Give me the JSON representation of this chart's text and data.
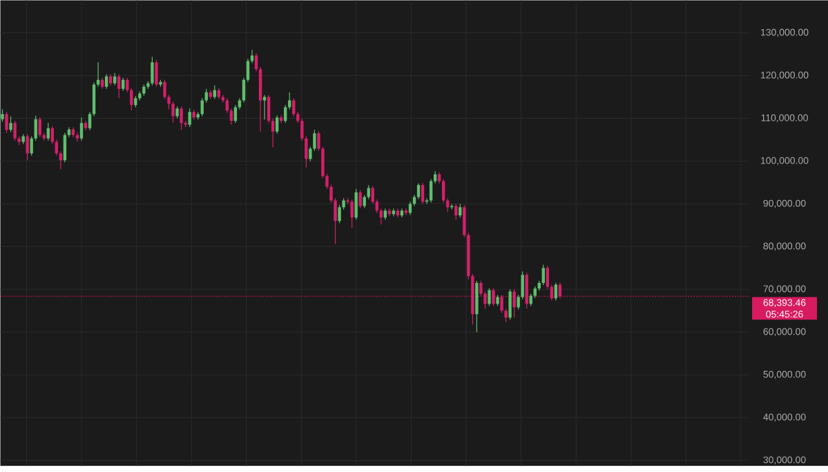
{
  "chart_data": {
    "type": "candlestick",
    "categories": [
      null,
      null,
      null,
      null,
      null,
      null,
      null,
      null,
      null,
      null,
      null,
      null,
      null,
      null,
      null,
      null,
      null,
      null,
      null,
      null,
      null,
      null,
      null,
      null,
      null,
      null,
      null,
      null,
      null,
      null,
      null,
      null,
      null,
      null,
      null,
      null,
      null,
      null,
      null,
      null,
      null,
      null,
      null,
      null,
      null,
      null,
      null,
      null,
      null,
      null,
      null,
      null,
      null,
      null,
      null,
      null,
      null,
      null,
      null,
      null,
      null,
      null,
      null,
      null,
      null,
      null,
      null,
      null,
      null,
      null,
      null,
      null,
      null,
      null,
      null,
      null,
      null,
      null,
      null,
      null,
      null,
      null,
      null,
      null,
      null,
      null,
      null,
      null,
      null,
      null,
      null,
      null,
      null,
      null,
      null,
      null,
      null,
      null,
      null,
      null,
      null,
      null,
      null,
      null,
      null,
      null,
      null,
      null,
      null,
      null,
      null,
      null,
      null,
      null,
      null,
      null,
      null,
      null,
      null,
      null,
      null,
      null,
      null,
      null,
      null,
      null,
      null,
      null,
      null,
      null,
      null,
      null,
      null,
      null,
      null,
      null,
      null,
      null,
      null,
      null,
      null,
      null,
      null,
      null,
      null,
      null,
      null,
      null,
      null,
      null,
      null,
      null,
      null,
      null,
      null,
      null,
      null,
      null,
      null,
      null,
      null,
      null,
      null,
      null,
      null,
      null,
      null,
      null,
      null,
      null,
      null,
      null,
      null,
      null,
      null,
      null,
      null,
      null,
      null,
      null
    ],
    "ohlc": [
      [
        109800,
        112100,
        109200,
        111000
      ],
      [
        111000,
        111500,
        106600,
        107300
      ],
      [
        107300,
        110500,
        106800,
        108900
      ],
      [
        108900,
        109400,
        104800,
        105300
      ],
      [
        105300,
        105800,
        103700,
        104500
      ],
      [
        104500,
        106300,
        104000,
        105800
      ],
      [
        105800,
        106300,
        100200,
        101800
      ],
      [
        101800,
        105800,
        101300,
        105300
      ],
      [
        105300,
        110600,
        104800,
        109800
      ],
      [
        109800,
        110300,
        105600,
        106100
      ],
      [
        106100,
        106600,
        104800,
        105300
      ],
      [
        105300,
        108900,
        104800,
        107700
      ],
      [
        107700,
        108200,
        104000,
        104500
      ],
      [
        104500,
        105000,
        101300,
        101800
      ],
      [
        101800,
        102300,
        98100,
        100200
      ],
      [
        100200,
        106600,
        99700,
        106100
      ],
      [
        106100,
        107900,
        105600,
        107400
      ],
      [
        107400,
        107900,
        105600,
        106100
      ],
      [
        106100,
        106600,
        104500,
        105300
      ],
      [
        105300,
        110200,
        104800,
        108900
      ],
      [
        108900,
        109400,
        107200,
        107700
      ],
      [
        107700,
        111500,
        107200,
        111000
      ],
      [
        111000,
        118400,
        110500,
        117900
      ],
      [
        117900,
        123100,
        117400,
        119000
      ],
      [
        119000,
        119500,
        116900,
        117400
      ],
      [
        117400,
        120300,
        116900,
        119800
      ],
      [
        119800,
        120300,
        117700,
        118200
      ],
      [
        118200,
        120600,
        117700,
        119800
      ],
      [
        119800,
        120300,
        114700,
        116900
      ],
      [
        116900,
        119500,
        116400,
        119000
      ],
      [
        119000,
        119500,
        116100,
        116600
      ],
      [
        116600,
        117100,
        111800,
        113100
      ],
      [
        113100,
        115200,
        112600,
        114700
      ],
      [
        114700,
        116300,
        114200,
        115800
      ],
      [
        115800,
        117900,
        115300,
        117400
      ],
      [
        117400,
        118700,
        116900,
        118200
      ],
      [
        118200,
        124400,
        117700,
        123100
      ],
      [
        123100,
        123600,
        117400,
        117900
      ],
      [
        117900,
        119000,
        117400,
        118500
      ],
      [
        118500,
        119000,
        114500,
        115000
      ],
      [
        115000,
        115500,
        112100,
        113400
      ],
      [
        113400,
        113900,
        109000,
        110500
      ],
      [
        110500,
        112800,
        110000,
        112300
      ],
      [
        112300,
        112800,
        107300,
        108900
      ],
      [
        108900,
        109400,
        108000,
        108500
      ],
      [
        108500,
        112300,
        108000,
        111500
      ],
      [
        111500,
        112000,
        109700,
        110200
      ],
      [
        110200,
        111500,
        109700,
        111000
      ],
      [
        111000,
        114700,
        110500,
        114200
      ],
      [
        114200,
        116900,
        113700,
        116100
      ],
      [
        116100,
        116600,
        114500,
        115000
      ],
      [
        115000,
        117700,
        114500,
        116600
      ],
      [
        116600,
        117100,
        114500,
        115000
      ],
      [
        115000,
        115500,
        113700,
        114200
      ],
      [
        114200,
        114700,
        111300,
        111800
      ],
      [
        111800,
        112300,
        108500,
        109400
      ],
      [
        109400,
        113100,
        108900,
        112600
      ],
      [
        112600,
        114700,
        112100,
        114200
      ],
      [
        114200,
        119500,
        113700,
        119000
      ],
      [
        119000,
        123900,
        118500,
        123400
      ],
      [
        123400,
        126000,
        122900,
        124700
      ],
      [
        124700,
        125200,
        121000,
        121500
      ],
      [
        121500,
        122000,
        106900,
        114200
      ],
      [
        114200,
        115500,
        109700,
        115000
      ],
      [
        115000,
        115500,
        108900,
        109400
      ],
      [
        109400,
        109900,
        103200,
        106900
      ],
      [
        106900,
        110700,
        106400,
        110200
      ],
      [
        110200,
        110700,
        108900,
        109400
      ],
      [
        109400,
        113100,
        108900,
        112600
      ],
      [
        112600,
        116100,
        112100,
        114200
      ],
      [
        114200,
        114700,
        110500,
        111000
      ],
      [
        111000,
        111500,
        108900,
        109400
      ],
      [
        109400,
        109900,
        104800,
        105300
      ],
      [
        105300,
        105800,
        98500,
        100500
      ],
      [
        100500,
        103400,
        100000,
        102900
      ],
      [
        102900,
        107300,
        102400,
        106500
      ],
      [
        106500,
        107000,
        102400,
        102900
      ],
      [
        102900,
        103400,
        96000,
        96500
      ],
      [
        96500,
        97000,
        93500,
        94000
      ],
      [
        94000,
        94500,
        90300,
        90800
      ],
      [
        90800,
        91300,
        80600,
        86000
      ],
      [
        86000,
        89700,
        85500,
        89200
      ],
      [
        89200,
        91300,
        88700,
        90800
      ],
      [
        90800,
        91300,
        90000,
        90500
      ],
      [
        90500,
        91000,
        84400,
        86800
      ],
      [
        86800,
        93500,
        86300,
        92700
      ],
      [
        92700,
        93200,
        89000,
        89500
      ],
      [
        89500,
        92100,
        89000,
        91600
      ],
      [
        91600,
        94400,
        91100,
        93700
      ],
      [
        93700,
        94200,
        90000,
        90500
      ],
      [
        90500,
        91000,
        87900,
        88400
      ],
      [
        88400,
        88900,
        85200,
        86800
      ],
      [
        86800,
        88900,
        86300,
        88400
      ],
      [
        88400,
        88900,
        87100,
        87600
      ],
      [
        87600,
        88900,
        87100,
        88400
      ],
      [
        88400,
        88900,
        86800,
        87300
      ],
      [
        87300,
        88900,
        86800,
        88400
      ],
      [
        88400,
        88900,
        87400,
        87900
      ],
      [
        87900,
        90500,
        87400,
        90000
      ],
      [
        90000,
        92100,
        89500,
        91600
      ],
      [
        91600,
        94800,
        91100,
        94400
      ],
      [
        94400,
        94900,
        90000,
        90500
      ],
      [
        90500,
        91300,
        90000,
        90800
      ],
      [
        90800,
        95800,
        90300,
        95300
      ],
      [
        95300,
        97700,
        94800,
        96900
      ],
      [
        96900,
        97400,
        94800,
        95300
      ],
      [
        95300,
        95800,
        90300,
        90800
      ],
      [
        90800,
        91300,
        88100,
        89200
      ],
      [
        89200,
        90000,
        88700,
        89500
      ],
      [
        89500,
        90000,
        86300,
        87300
      ],
      [
        87300,
        90000,
        86800,
        89200
      ],
      [
        89200,
        89700,
        82200,
        82700
      ],
      [
        82700,
        83200,
        72300,
        73100
      ],
      [
        73100,
        73600,
        61800,
        64200
      ],
      [
        64200,
        72000,
        60000,
        71500
      ],
      [
        71500,
        72000,
        68500,
        69000
      ],
      [
        69000,
        69500,
        65500,
        66600
      ],
      [
        66600,
        70300,
        66100,
        69800
      ],
      [
        69800,
        70300,
        66100,
        66600
      ],
      [
        66600,
        68700,
        66100,
        68200
      ],
      [
        68200,
        68700,
        64500,
        65000
      ],
      [
        65000,
        65500,
        62300,
        63400
      ],
      [
        63400,
        70000,
        62900,
        69500
      ],
      [
        69500,
        70000,
        63400,
        65800
      ],
      [
        65800,
        68700,
        65300,
        68200
      ],
      [
        68200,
        74200,
        67700,
        73400
      ],
      [
        73400,
        73900,
        65500,
        66600
      ],
      [
        66600,
        69000,
        66100,
        68500
      ],
      [
        68500,
        70700,
        68000,
        70200
      ],
      [
        70200,
        72000,
        69700,
        71500
      ],
      [
        71500,
        75800,
        71000,
        75000
      ],
      [
        75000,
        75500,
        70100,
        70600
      ],
      [
        70600,
        71100,
        67400,
        67900
      ],
      [
        67900,
        71600,
        67400,
        71100
      ],
      [
        71100,
        71600,
        67900,
        68393.46
      ],
      null,
      null,
      null,
      null,
      null,
      null,
      null,
      null,
      null,
      null,
      null,
      null,
      null,
      null,
      null,
      null,
      null,
      null,
      null,
      null,
      null,
      null,
      null,
      null,
      null,
      null,
      null,
      null,
      null,
      null,
      null,
      null,
      null,
      null,
      null,
      null,
      null,
      null,
      null,
      null,
      null,
      null,
      null,
      null,
      null
    ],
    "colors": [
      "#5fbe6c",
      "#d3206a",
      "#5fbe6c",
      "#d3206a",
      "#d3206a",
      "#5fbe6c",
      "#d3206a",
      "#5fbe6c",
      "#5fbe6c",
      "#d3206a",
      "#d3206a",
      "#5fbe6c",
      "#d3206a",
      "#d3206a",
      "#d3206a",
      "#5fbe6c",
      "#5fbe6c",
      "#d3206a",
      "#d3206a",
      "#5fbe6c",
      "#d3206a",
      "#5fbe6c",
      "#5fbe6c",
      "#5fbe6c",
      "#d3206a",
      "#5fbe6c",
      "#d3206a",
      "#5fbe6c",
      "#d3206a",
      "#5fbe6c",
      "#d3206a",
      "#d3206a",
      "#5fbe6c",
      "#5fbe6c",
      "#5fbe6c",
      "#5fbe6c",
      "#5fbe6c",
      "#d3206a",
      "#5fbe6c",
      "#d3206a",
      "#d3206a",
      "#d3206a",
      "#5fbe6c",
      "#d3206a",
      "#d3206a",
      "#5fbe6c",
      "#d3206a",
      "#5fbe6c",
      "#5fbe6c",
      "#5fbe6c",
      "#d3206a",
      "#5fbe6c",
      "#d3206a",
      "#d3206a",
      "#d3206a",
      "#d3206a",
      "#5fbe6c",
      "#5fbe6c",
      "#5fbe6c",
      "#5fbe6c",
      "#5fbe6c",
      "#d3206a",
      "#d3206a",
      "#5fbe6c",
      "#d3206a",
      "#d3206a",
      "#5fbe6c",
      "#d3206a",
      "#5fbe6c",
      "#5fbe6c",
      "#d3206a",
      "#d3206a",
      "#d3206a",
      "#d3206a",
      "#5fbe6c",
      "#5fbe6c",
      "#d3206a",
      "#d3206a",
      "#d3206a",
      "#d3206a",
      "#d3206a",
      "#5fbe6c",
      "#5fbe6c",
      "#d3206a",
      "#d3206a",
      "#5fbe6c",
      "#d3206a",
      "#5fbe6c",
      "#5fbe6c",
      "#d3206a",
      "#d3206a",
      "#d3206a",
      "#5fbe6c",
      "#d3206a",
      "#5fbe6c",
      "#d3206a",
      "#5fbe6c",
      "#d3206a",
      "#5fbe6c",
      "#5fbe6c",
      "#5fbe6c",
      "#d3206a",
      "#5fbe6c",
      "#5fbe6c",
      "#5fbe6c",
      "#d3206a",
      "#d3206a",
      "#d3206a",
      "#5fbe6c",
      "#d3206a",
      "#5fbe6c",
      "#d3206a",
      "#d3206a",
      "#d3206a",
      "#5fbe6c",
      "#d3206a",
      "#d3206a",
      "#5fbe6c",
      "#d3206a",
      "#5fbe6c",
      "#d3206a",
      "#d3206a",
      "#5fbe6c",
      "#d3206a",
      "#5fbe6c",
      "#5fbe6c",
      "#d3206a",
      "#5fbe6c",
      "#5fbe6c",
      "#5fbe6c",
      "#5fbe6c",
      "#d3206a",
      "#d3206a",
      "#5fbe6c",
      "#d3206a",
      null,
      null,
      null,
      null,
      null,
      null,
      null,
      null,
      null,
      null,
      null,
      null,
      null,
      null,
      null,
      null,
      null,
      null,
      null,
      null,
      null,
      null,
      null,
      null,
      null,
      null,
      null,
      null,
      null,
      null,
      null,
      null,
      null,
      null,
      null,
      null,
      null,
      null,
      null,
      null,
      null,
      null,
      null,
      null,
      null
    ],
    "ylim": [
      28700,
      137600
    ],
    "yticks": [
      {
        "value": 30000,
        "label": "30,000.00"
      },
      {
        "value": 40000,
        "label": "40,000.00"
      },
      {
        "value": 50000,
        "label": "50,000.00"
      },
      {
        "value": 60000,
        "label": "60,000.00"
      },
      {
        "value": 70000,
        "label": "70,000.00"
      },
      {
        "value": 80000,
        "label": "80,000.00"
      },
      {
        "value": 90000,
        "label": "90,000.00"
      },
      {
        "value": 100000,
        "label": "100,000.00"
      },
      {
        "value": 110000,
        "label": "110,000.00"
      },
      {
        "value": 120000,
        "label": "120,000.00"
      },
      {
        "value": 130000,
        "label": "130,000.00"
      }
    ],
    "grid": true,
    "tick_labels": "y",
    "ref_lines": [
      {
        "axis": "y",
        "value": 68393.46,
        "label": "68,393.46",
        "color": "#d81b60",
        "line_style": "dotted"
      }
    ],
    "annotations": [
      "05:45:26"
    ]
  }
}
